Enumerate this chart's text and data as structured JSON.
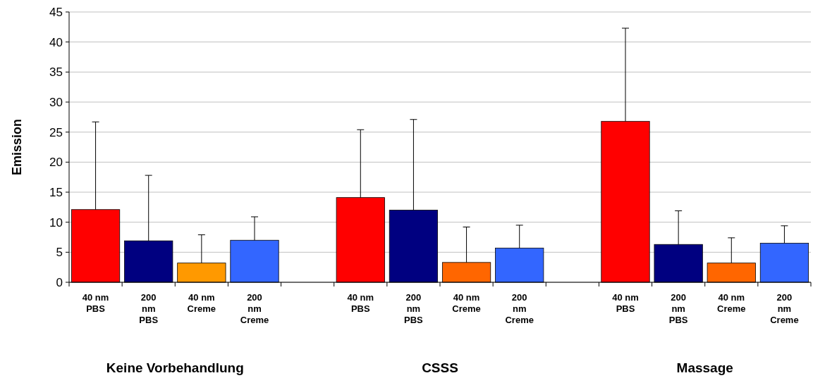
{
  "chart_data": {
    "type": "bar",
    "ylabel": "Emission",
    "categories": [
      "40 nm\nPBS",
      "200\nnm\nPBS",
      "40 nm\nCreme",
      "200\nnm\nCreme",
      null,
      "40 nm\nPBS",
      "200\nnm\nPBS",
      "40 nm\nCreme",
      "200\nnm\nCreme",
      null,
      "40 nm\nPBS",
      "200\nnm\nPBS",
      "40 nm\nCreme",
      "200\nnm\nCreme"
    ],
    "values": [
      12.1,
      6.9,
      3.2,
      7.0,
      null,
      14.1,
      12.0,
      3.3,
      5.7,
      null,
      26.8,
      6.3,
      3.2,
      6.5
    ],
    "colors": [
      "#ff0000",
      "#000080",
      "#ff9900",
      "#3366ff",
      null,
      "#ff0000",
      "#000080",
      "#ff6600",
      "#3366ff",
      null,
      "#ff0000",
      "#000080",
      "#ff6600",
      "#3366ff"
    ],
    "errors": [
      [
        12.1,
        26.7
      ],
      [
        6.9,
        17.8
      ],
      [
        3.2,
        7.9
      ],
      [
        7.0,
        10.9
      ],
      null,
      [
        14.1,
        25.4
      ],
      [
        12.0,
        27.1
      ],
      [
        3.3,
        9.2
      ],
      [
        5.7,
        9.5
      ],
      null,
      [
        26.8,
        42.3
      ],
      [
        6.3,
        11.9
      ],
      [
        3.2,
        7.4
      ],
      [
        6.5,
        9.4
      ]
    ],
    "ylim": [
      0,
      45
    ],
    "yticks": [
      0,
      5,
      10,
      15,
      20,
      25,
      30,
      35,
      40,
      45
    ],
    "grid": "y",
    "annotations": [
      "Keine Vorbehandlung",
      "CSSS",
      "Massage"
    ]
  }
}
